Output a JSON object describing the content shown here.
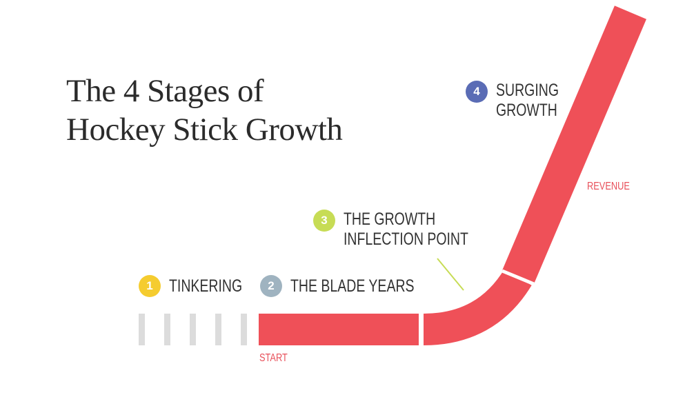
{
  "title": {
    "line1": "The 4 Stages of",
    "line2": "Hockey Stick Growth"
  },
  "stages": [
    {
      "number": "1",
      "label": "TINKERING",
      "color": "#f5cc2f"
    },
    {
      "number": "2",
      "label": "THE BLADE YEARS",
      "color": "#9fb3c0"
    },
    {
      "number": "3",
      "label_line1": "THE GROWTH",
      "label_line2": "INFLECTION POINT",
      "color": "#c7dc55"
    },
    {
      "number": "4",
      "label_line1": "SURGING",
      "label_line2": "GROWTH",
      "color": "#5a6cb5"
    }
  ],
  "axis_labels": {
    "start": "START",
    "revenue": "REVENUE"
  },
  "colors": {
    "stick": "#ef5058",
    "tinkering_ticks": "#dcdcdc"
  }
}
